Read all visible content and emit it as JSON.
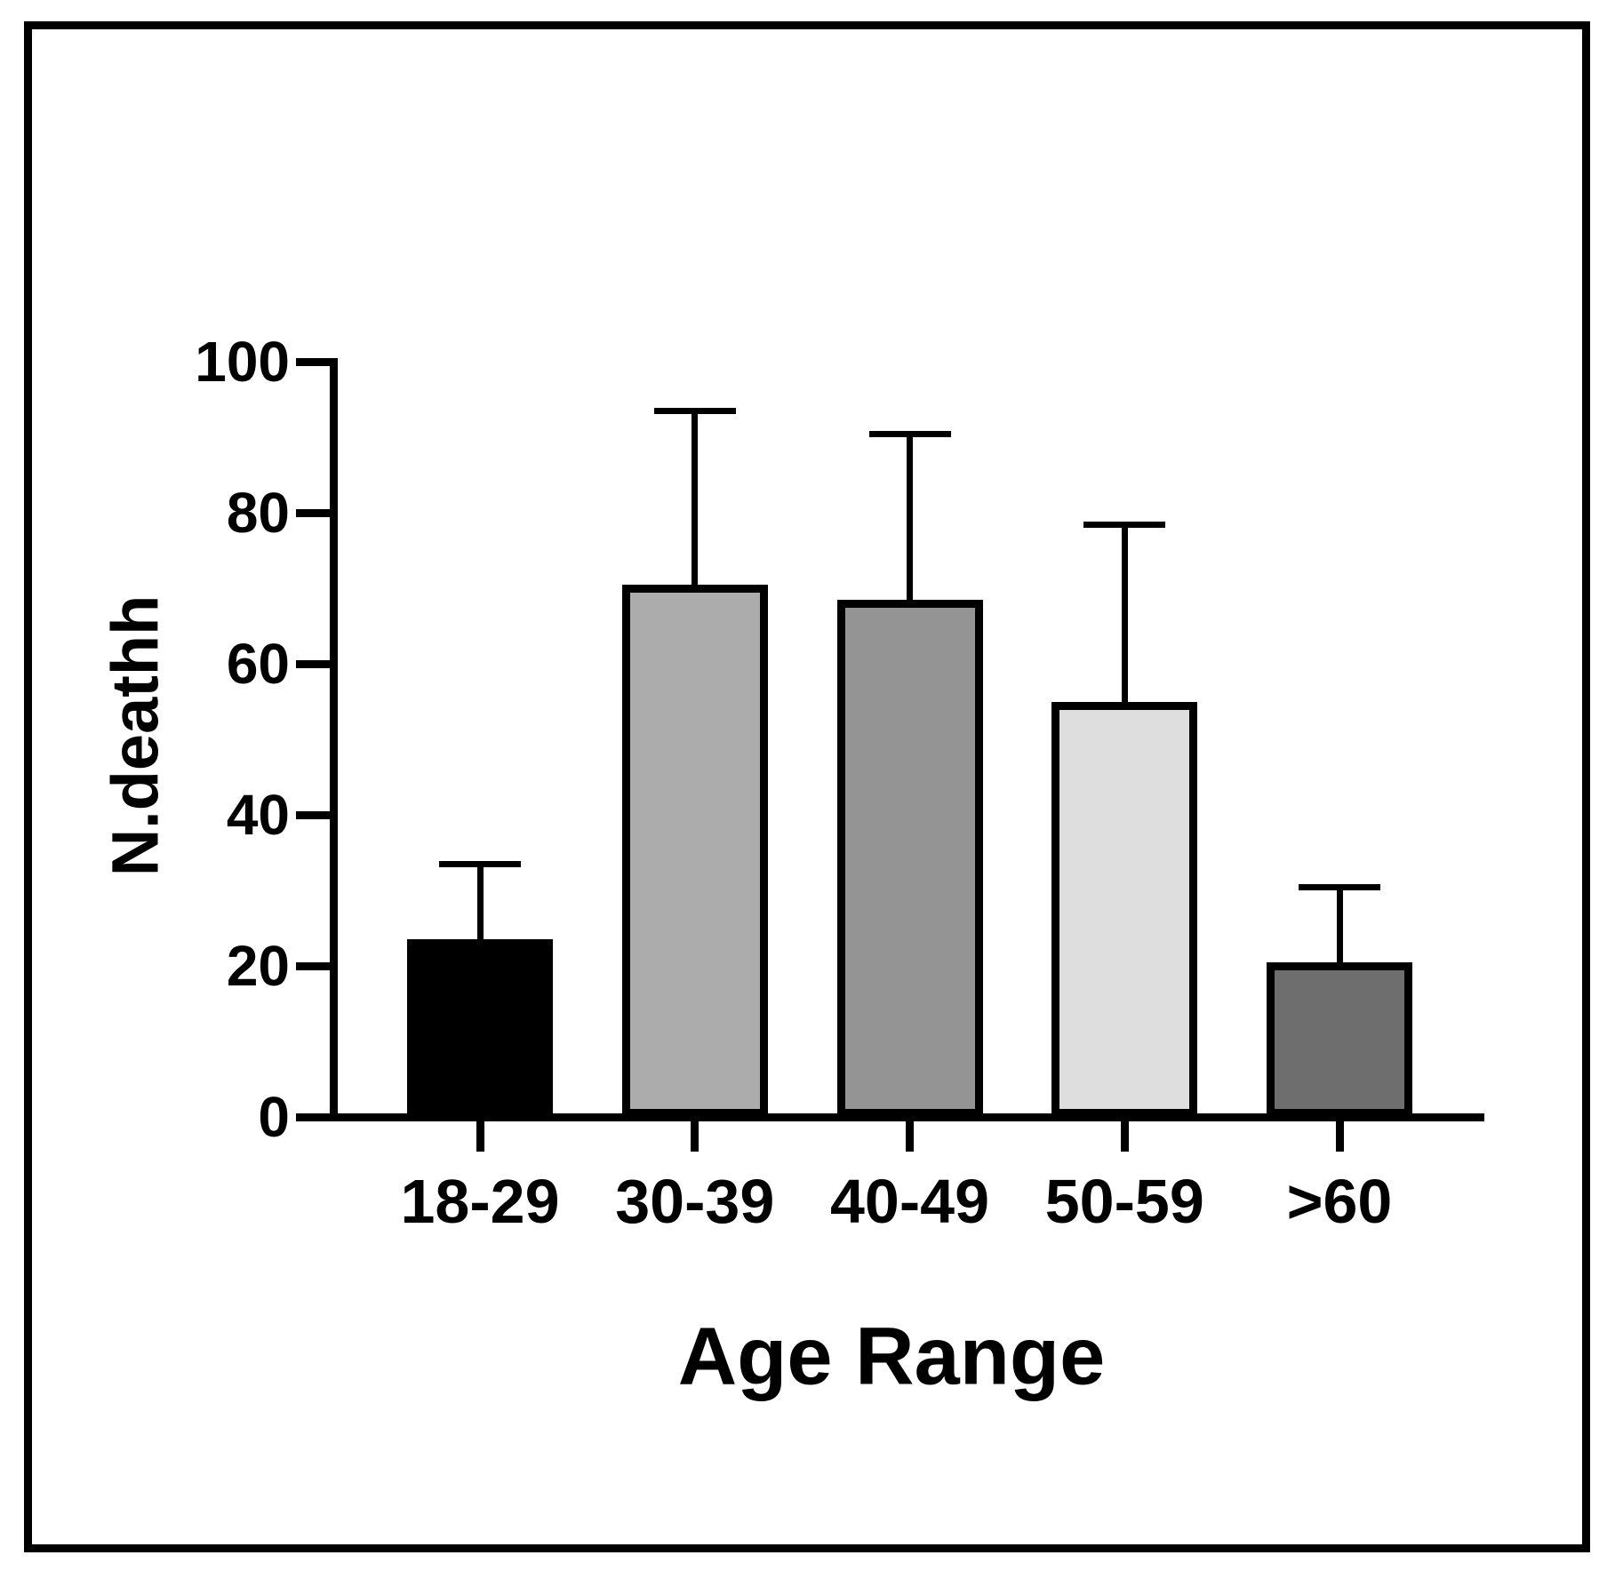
{
  "figure": {
    "background": "#ffffff",
    "frame_color": "#000000"
  },
  "chart_data": {
    "type": "bar",
    "title": "",
    "xlabel": "Age Range",
    "ylabel": "N.deathh",
    "categories": [
      "18-29",
      "30-39",
      "40-49",
      "50-59",
      ">60"
    ],
    "values": [
      23.5,
      70.5,
      68.5,
      55,
      20.5
    ],
    "errors_upper": [
      10,
      23,
      22,
      23.5,
      10
    ],
    "bar_colors": [
      "#000000",
      "#acacac",
      "#949494",
      "#dedede",
      "#6e6e6e"
    ],
    "bar_border_color": "#000000",
    "error_bar_color": "#000000",
    "axis_color": "#000000",
    "yticks": [
      0,
      20,
      40,
      60,
      80,
      100
    ],
    "ylim": [
      0,
      100
    ],
    "grid": false,
    "legend": false,
    "error_bars": "upper-only, capped"
  }
}
